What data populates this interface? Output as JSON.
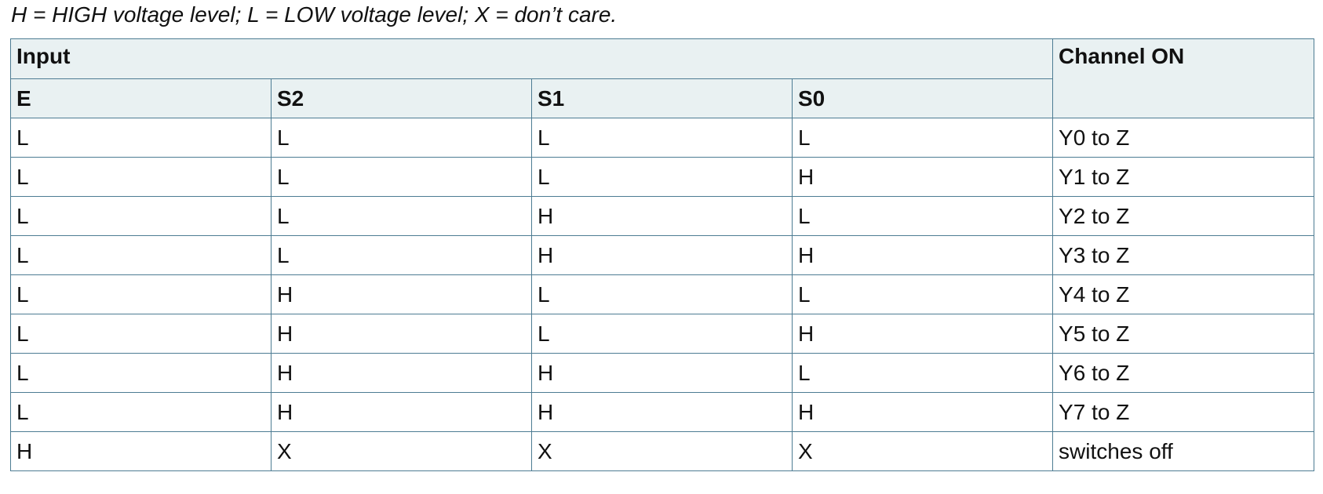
{
  "caption": "H = HIGH voltage level; L = LOW voltage level; X = don’t care.",
  "header": {
    "input": "Input",
    "channel_on": "Channel ON",
    "sub": [
      "E",
      "S2",
      "S1",
      "S0"
    ]
  },
  "rows": [
    [
      "L",
      "L",
      "L",
      "L",
      "Y0 to Z"
    ],
    [
      "L",
      "L",
      "L",
      "H",
      "Y1 to Z"
    ],
    [
      "L",
      "L",
      "H",
      "L",
      "Y2 to Z"
    ],
    [
      "L",
      "L",
      "H",
      "H",
      "Y3 to Z"
    ],
    [
      "L",
      "H",
      "L",
      "L",
      "Y4 to Z"
    ],
    [
      "L",
      "H",
      "L",
      "H",
      "Y5 to Z"
    ],
    [
      "L",
      "H",
      "H",
      "L",
      "Y6 to Z"
    ],
    [
      "L",
      "H",
      "H",
      "H",
      "Y7 to Z"
    ],
    [
      "H",
      "X",
      "X",
      "X",
      "switches off"
    ]
  ]
}
